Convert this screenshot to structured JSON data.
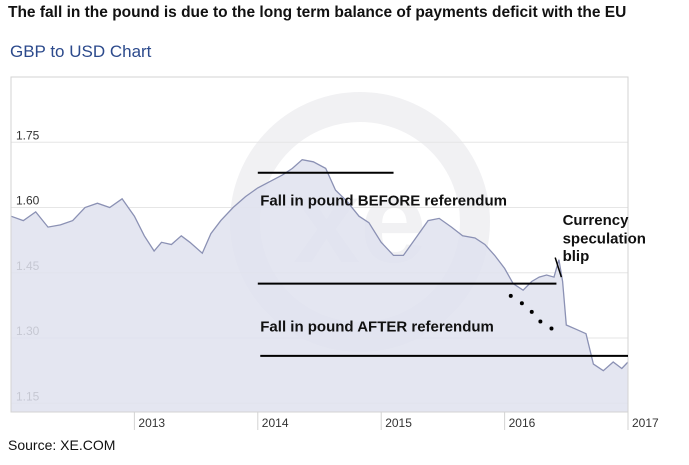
{
  "headline": "The fall in the pound is due to the long term balance of payments deficit with the EU",
  "source": "Source: XE.COM",
  "colors": {
    "area_fill": "#dfe2ee",
    "line": "#8b91b4",
    "plot_border": "#d3d3d3",
    "grid": "#e6e6e6",
    "annotation": "#000000",
    "subtitle": "#2c4a8c",
    "watermark": "#f1f1f3"
  },
  "chart_data": {
    "type": "area",
    "title": "GBP to USD Chart",
    "xlabel": "",
    "ylabel": "",
    "ylim": [
      1.13,
      1.9
    ],
    "xlim": [
      2012.0,
      2017.0
    ],
    "grid": "horizontal",
    "watermark": "xe",
    "y_ticks": [
      1.75,
      1.6,
      1.45,
      1.3,
      1.15
    ],
    "x_ticks": [
      {
        "label": "2013",
        "x": 2013.0
      },
      {
        "label": "2014",
        "x": 2014.0
      },
      {
        "label": "2015",
        "x": 2015.0
      },
      {
        "label": "2016",
        "x": 2016.0
      },
      {
        "label": "2017",
        "x": 2017.0
      }
    ],
    "series": [
      {
        "points": [
          [
            2012.0,
            1.58
          ],
          [
            2012.1,
            1.57
          ],
          [
            2012.2,
            1.59
          ],
          [
            2012.3,
            1.555
          ],
          [
            2012.4,
            1.56
          ],
          [
            2012.5,
            1.57
          ],
          [
            2012.6,
            1.6
          ],
          [
            2012.7,
            1.61
          ],
          [
            2012.8,
            1.6
          ],
          [
            2012.9,
            1.62
          ],
          [
            2013.0,
            1.58
          ],
          [
            2013.08,
            1.535
          ],
          [
            2013.16,
            1.5
          ],
          [
            2013.22,
            1.52
          ],
          [
            2013.3,
            1.515
          ],
          [
            2013.38,
            1.535
          ],
          [
            2013.45,
            1.52
          ],
          [
            2013.55,
            1.495
          ],
          [
            2013.62,
            1.54
          ],
          [
            2013.7,
            1.57
          ],
          [
            2013.8,
            1.6
          ],
          [
            2013.9,
            1.625
          ],
          [
            2014.0,
            1.645
          ],
          [
            2014.1,
            1.66
          ],
          [
            2014.2,
            1.675
          ],
          [
            2014.28,
            1.69
          ],
          [
            2014.36,
            1.71
          ],
          [
            2014.45,
            1.705
          ],
          [
            2014.55,
            1.69
          ],
          [
            2014.63,
            1.64
          ],
          [
            2014.72,
            1.615
          ],
          [
            2014.82,
            1.58
          ],
          [
            2014.9,
            1.565
          ],
          [
            2015.0,
            1.52
          ],
          [
            2015.1,
            1.49
          ],
          [
            2015.18,
            1.49
          ],
          [
            2015.28,
            1.53
          ],
          [
            2015.38,
            1.57
          ],
          [
            2015.47,
            1.575
          ],
          [
            2015.57,
            1.555
          ],
          [
            2015.66,
            1.535
          ],
          [
            2015.76,
            1.53
          ],
          [
            2015.84,
            1.515
          ],
          [
            2015.92,
            1.49
          ],
          [
            2016.0,
            1.46
          ],
          [
            2016.07,
            1.425
          ],
          [
            2016.15,
            1.41
          ],
          [
            2016.22,
            1.43
          ],
          [
            2016.28,
            1.44
          ],
          [
            2016.34,
            1.445
          ],
          [
            2016.4,
            1.44
          ],
          [
            2016.44,
            1.48
          ],
          [
            2016.47,
            1.43
          ],
          [
            2016.5,
            1.33
          ],
          [
            2016.58,
            1.32
          ],
          [
            2016.66,
            1.31
          ],
          [
            2016.72,
            1.24
          ],
          [
            2016.8,
            1.225
          ],
          [
            2016.88,
            1.245
          ],
          [
            2016.95,
            1.23
          ],
          [
            2017.0,
            1.245
          ]
        ]
      }
    ],
    "annotations": {
      "lines": [
        {
          "x0": 2014.0,
          "x1": 2015.1,
          "y": 1.68
        },
        {
          "x0": 2014.0,
          "x1": 2016.42,
          "y": 1.425
        },
        {
          "x0": 2014.02,
          "x1": 2017.0,
          "y": 1.259
        }
      ],
      "arrow": {
        "x0": 2016.46,
        "y0": 1.44,
        "x1": 2016.41,
        "y1": 1.485
      },
      "dots": [
        {
          "x": 2016.05,
          "y": 1.397
        },
        {
          "x": 2016.14,
          "y": 1.38
        },
        {
          "x": 2016.22,
          "y": 1.36
        },
        {
          "x": 2016.29,
          "y": 1.338
        },
        {
          "x": 2016.38,
          "y": 1.322
        }
      ],
      "labels": [
        {
          "text": "Fall in pound BEFORE referendum",
          "x": 2014.02,
          "y": 1.605
        },
        {
          "text": "Fall in pound AFTER referendum",
          "x": 2014.02,
          "y": 1.315
        },
        {
          "text": "Currency",
          "x": 2016.47,
          "y": 1.56
        },
        {
          "text": "speculation",
          "x": 2016.47,
          "y": 1.517
        },
        {
          "text": "blip",
          "x": 2016.47,
          "y": 1.477
        }
      ]
    }
  }
}
